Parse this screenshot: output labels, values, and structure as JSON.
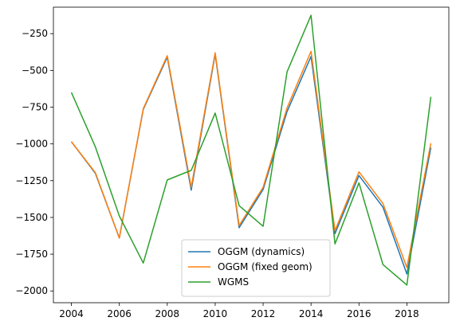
{
  "chart_data": {
    "type": "line",
    "title": "",
    "xlabel": "",
    "ylabel": "",
    "x": [
      2004,
      2005,
      2006,
      2007,
      2008,
      2009,
      2010,
      2011,
      2012,
      2013,
      2014,
      2015,
      2016,
      2017,
      2018,
      2019
    ],
    "xlim": [
      2003.25,
      2019.75
    ],
    "ylim": [
      -2080,
      -70
    ],
    "xticks": [
      2004,
      2006,
      2008,
      2010,
      2012,
      2014,
      2016,
      2018
    ],
    "xtick_labels": [
      "2004",
      "2006",
      "2008",
      "2010",
      "2012",
      "2014",
      "2016",
      "2018"
    ],
    "yticks": [
      -250,
      -500,
      -750,
      -1000,
      -1250,
      -1500,
      -1750,
      -2000
    ],
    "ytick_labels": [
      "−250",
      "−500",
      "−750",
      "−1000",
      "−1250",
      "−1500",
      "−1750",
      "−2000"
    ],
    "grid": false,
    "legend_position": "bottom-center",
    "series": [
      {
        "name": "OGGM (dynamics)",
        "color": "#1f77b4",
        "values": [
          -985,
          -1200,
          -1640,
          -765,
          -410,
          -1315,
          -390,
          -1570,
          -1310,
          -780,
          -405,
          -1610,
          -1215,
          -1430,
          -1885,
          -1025
        ]
      },
      {
        "name": "OGGM (fixed geom)",
        "color": "#ff7f0e",
        "values": [
          -985,
          -1195,
          -1640,
          -760,
          -400,
          -1295,
          -380,
          -1555,
          -1295,
          -755,
          -370,
          -1590,
          -1190,
          -1405,
          -1840,
          -995
        ]
      },
      {
        "name": "WGMS",
        "color": "#2ca02c",
        "values": [
          -650,
          -1020,
          -1490,
          -1810,
          -1245,
          -1180,
          -790,
          -1420,
          -1560,
          -510,
          -125,
          -1680,
          -1265,
          -1820,
          -1960,
          -680
        ]
      }
    ]
  }
}
